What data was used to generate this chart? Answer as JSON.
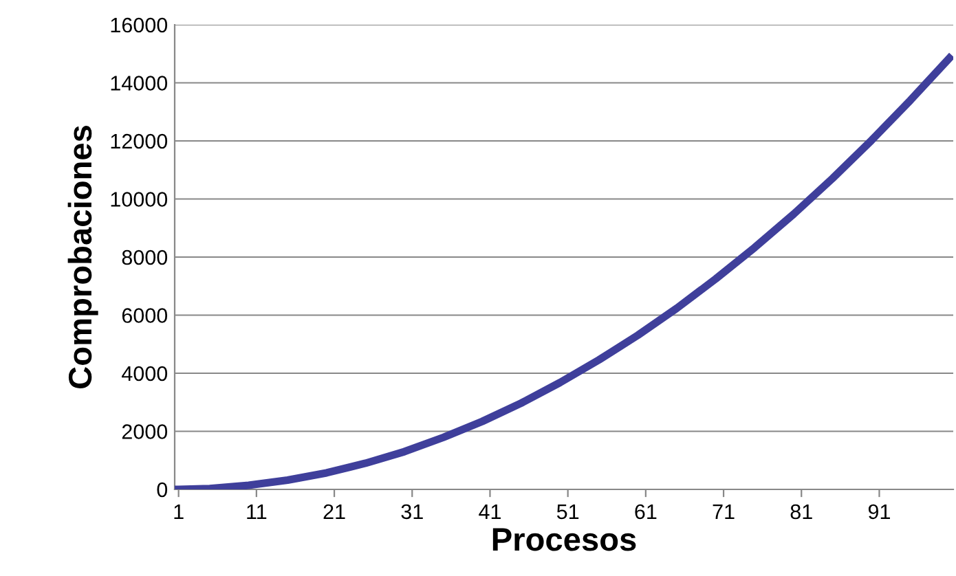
{
  "chart_data": {
    "type": "line",
    "xlabel": "Procesos",
    "ylabel": "Comprobaciones",
    "x": [
      1,
      5,
      10,
      15,
      20,
      25,
      30,
      35,
      40,
      45,
      50,
      55,
      60,
      65,
      70,
      75,
      80,
      85,
      90,
      95,
      100
    ],
    "series": [
      {
        "color": "#3f3f9b",
        "values": [
          0,
          30,
          140,
          320,
          570,
          900,
          1300,
          1790,
          2340,
          2970,
          3680,
          4460,
          5310,
          6240,
          7250,
          8330,
          9480,
          10710,
          12020,
          13400,
          14850
        ]
      }
    ],
    "xlim": [
      0.5,
      100.5
    ],
    "xticks": [
      1,
      11,
      21,
      31,
      41,
      51,
      61,
      71,
      81,
      91
    ],
    "ylim": [
      0,
      16000
    ],
    "yticks": [
      0,
      2000,
      4000,
      6000,
      8000,
      10000,
      12000,
      14000,
      16000
    ],
    "grid": "y",
    "legend": false,
    "marker": "none",
    "line_style": "solid"
  }
}
